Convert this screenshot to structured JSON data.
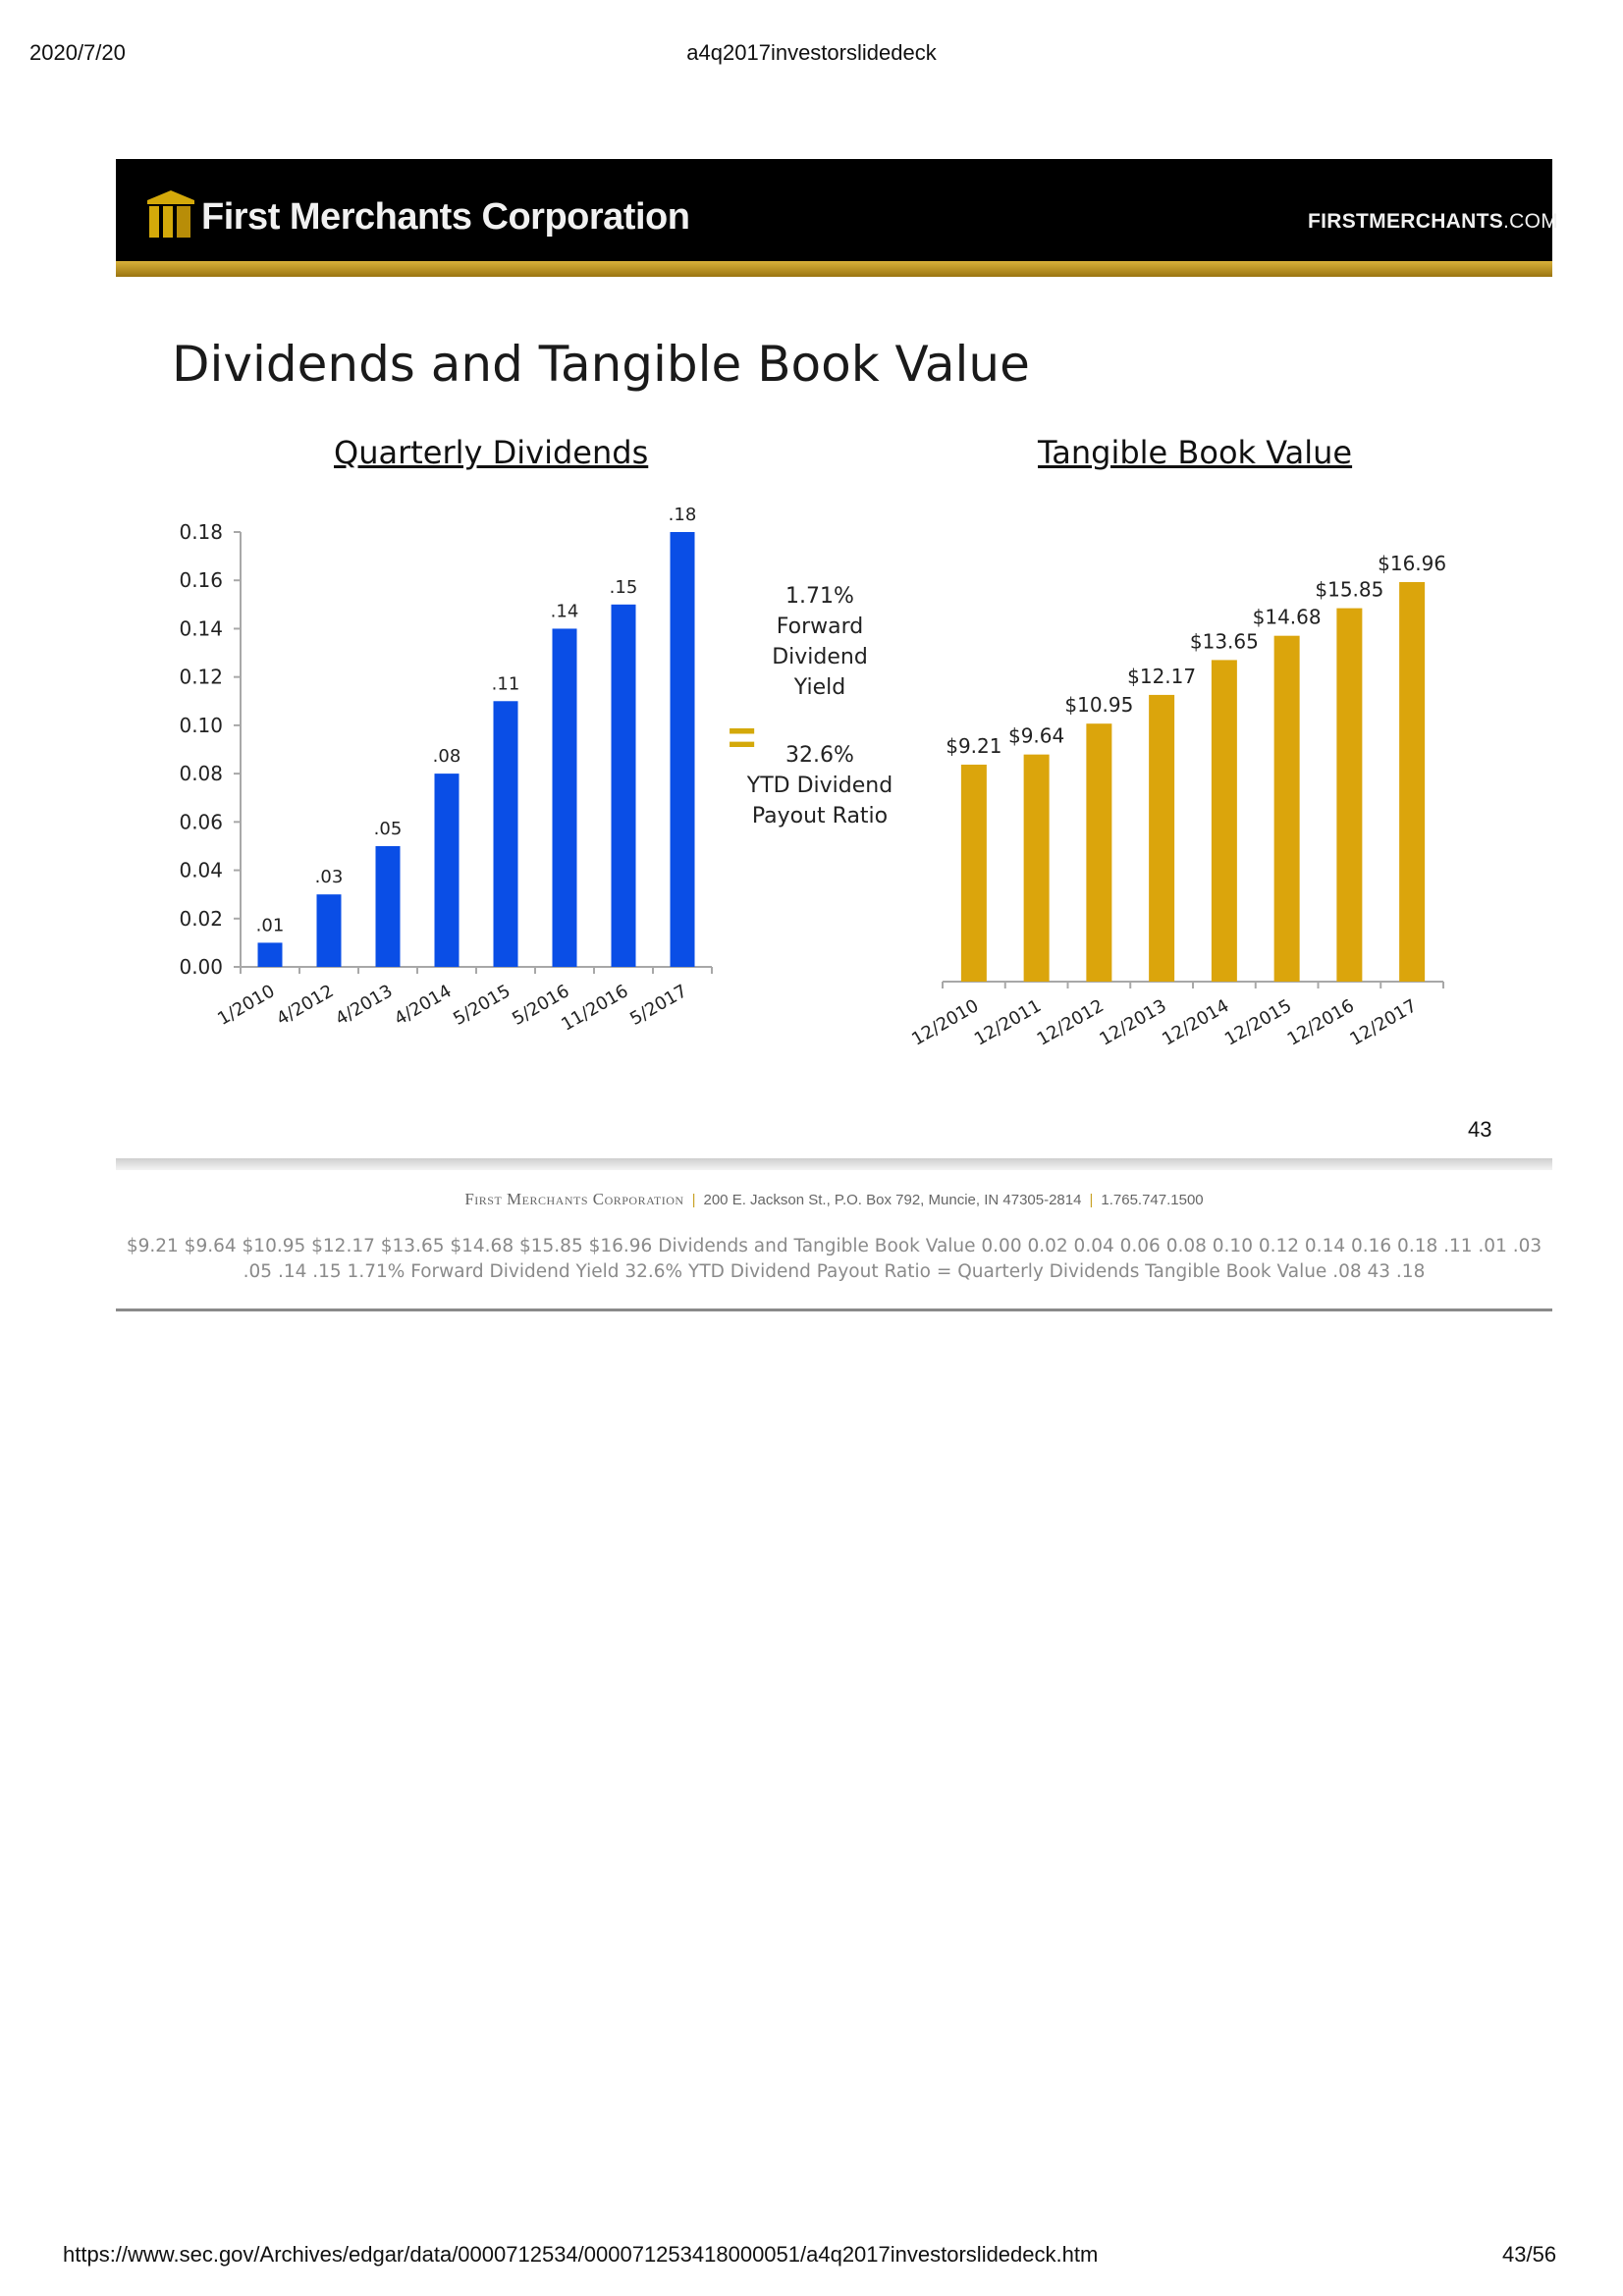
{
  "print_header": {
    "date": "2020/7/20",
    "doc_title": "a4q2017investorslidedeck"
  },
  "print_footer": {
    "url": "https://www.sec.gov/Archives/edgar/data/0000712534/000071253418000051/a4q2017investorslidedeck.htm",
    "page": "43/56"
  },
  "banner": {
    "brand": "First Merchants Corporation",
    "site_main": "FIRSTMERCHANTS",
    "site_tld": ".COM"
  },
  "slide": {
    "title": "Dividends and Tangible Book Value",
    "left_subtitle": "Quarterly Dividends",
    "right_subtitle": "Tangible Book Value",
    "middle": {
      "yield_value": "1.71%",
      "yield_l1": "Forward",
      "yield_l2": "Dividend",
      "yield_l3": "Yield",
      "equals": "=",
      "payout_value": "32.6%",
      "payout_l1": "YTD Dividend",
      "payout_l2": "Payout Ratio"
    },
    "page_number": "43"
  },
  "footer": {
    "company": "First Merchants Corporation",
    "address": "200 E. Jackson St., P.O. Box 792, Muncie, IN 47305-2814",
    "phone": "1.765.747.1500"
  },
  "alt_text": "$9.21 $9.64  $10.95  $12.17  $13.65  $14.68  $15.85  $16.96    Dividends and Tangible Book Value  0.00 0.02 0.04 0.06 0.08 0.10 0.12 0.14 0.16 0.18 .11  .01  .03  .05  .14  .15 1.71%  Forward  Dividend  Yield   32.6%  YTD Dividend  Payout Ratio  =  Quarterly Dividends Tangible Book Value  .08  43  .18",
  "colors": {
    "dividend_bar": "#0a4ee6",
    "tbv_bar": "#dba50c",
    "gold": "#d4a90a"
  },
  "chart_data": [
    {
      "type": "bar",
      "title": "Quarterly Dividends",
      "categories": [
        "1/2010",
        "4/2012",
        "4/2013",
        "4/2014",
        "5/2015",
        "5/2016",
        "11/2016",
        "5/2017"
      ],
      "values": [
        0.01,
        0.03,
        0.05,
        0.08,
        0.11,
        0.14,
        0.15,
        0.18
      ],
      "data_labels": [
        ".01",
        ".03",
        ".05",
        ".08",
        ".11",
        ".14",
        ".15",
        ".18"
      ],
      "yticks": [
        "0.00",
        "0.02",
        "0.04",
        "0.06",
        "0.08",
        "0.10",
        "0.12",
        "0.14",
        "0.16",
        "0.18"
      ],
      "ylim": [
        0,
        0.18
      ],
      "grid": false,
      "color": "#0a4ee6"
    },
    {
      "type": "bar",
      "title": "Tangible Book Value",
      "categories": [
        "12/2010",
        "12/2011",
        "12/2012",
        "12/2013",
        "12/2014",
        "12/2015",
        "12/2016",
        "12/2017"
      ],
      "values": [
        9.21,
        9.64,
        10.95,
        12.17,
        13.65,
        14.68,
        15.85,
        16.96
      ],
      "data_labels": [
        "$9.21",
        "$9.64",
        "$10.95",
        "$12.17",
        "$13.65",
        "$14.68",
        "$15.85",
        "$16.96"
      ],
      "ylim": [
        0,
        17.5
      ],
      "grid": false,
      "color": "#dba50c"
    }
  ]
}
